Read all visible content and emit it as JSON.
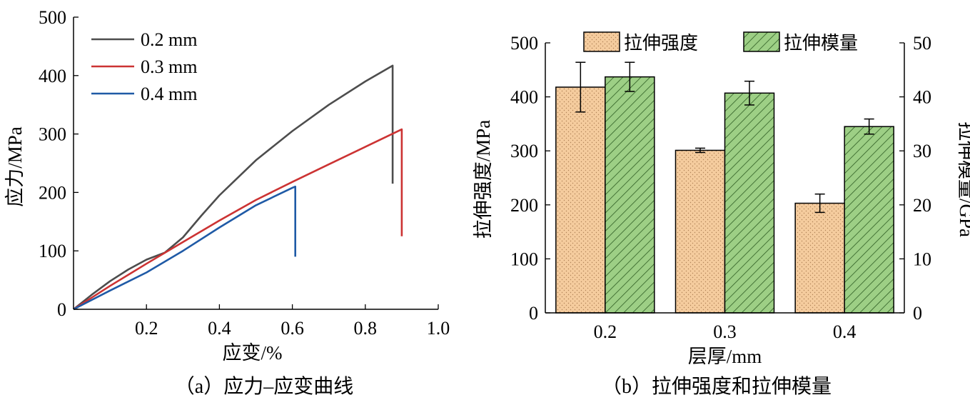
{
  "chart_data": [
    {
      "type": "line",
      "caption": "（a）应力–应变曲线",
      "xlabel": "应变/%",
      "ylabel": "应力/MPa",
      "xlim": [
        0,
        1.0
      ],
      "ylim": [
        0,
        500
      ],
      "xticks": [
        0.2,
        0.4,
        0.6,
        0.8,
        1.0
      ],
      "xtick_labels": [
        "0.2",
        "0.4",
        "0.6",
        "0.8",
        "1.0"
      ],
      "yticks": [
        0,
        100,
        200,
        300,
        400,
        500
      ],
      "ytick_labels": [
        "0",
        "100",
        "200",
        "300",
        "400",
        "500"
      ],
      "grid": false,
      "legend": "top-left",
      "series": [
        {
          "name": "0.2 mm",
          "color": "#4d4d4d",
          "x": [
            0,
            0.05,
            0.1,
            0.15,
            0.2,
            0.25,
            0.3,
            0.35,
            0.4,
            0.5,
            0.6,
            0.7,
            0.8,
            0.875,
            0.875
          ],
          "y": [
            0,
            25,
            48,
            68,
            85,
            97,
            123,
            160,
            195,
            255,
            305,
            350,
            390,
            417,
            215
          ]
        },
        {
          "name": "0.3 mm",
          "color": "#cc3333",
          "x": [
            0,
            0.1,
            0.2,
            0.3,
            0.4,
            0.5,
            0.6,
            0.7,
            0.8,
            0.9,
            0.9
          ],
          "y": [
            0,
            40,
            78,
            115,
            152,
            187,
            218,
            248,
            278,
            308,
            125
          ]
        },
        {
          "name": "0.4 mm",
          "color": "#1f5aa6",
          "x": [
            0,
            0.1,
            0.2,
            0.3,
            0.4,
            0.5,
            0.6,
            0.608,
            0.608
          ],
          "y": [
            0,
            32,
            63,
            100,
            140,
            178,
            208,
            210,
            90
          ]
        }
      ]
    },
    {
      "type": "bar",
      "caption": "（b）拉伸强度和拉伸模量",
      "xlabel": "层厚/mm",
      "ylabel": "拉伸强度/MPa",
      "y2label": "拉伸模量/GPa",
      "categories": [
        "0.2",
        "0.3",
        "0.4"
      ],
      "ylim": [
        0,
        500
      ],
      "y2lim": [
        0,
        50
      ],
      "yticks": [
        0,
        100,
        200,
        300,
        400,
        500
      ],
      "ytick_labels": [
        "0",
        "100",
        "200",
        "300",
        "400",
        "500"
      ],
      "y2ticks": [
        0,
        10,
        20,
        30,
        40,
        50
      ],
      "y2tick_labels": [
        "0",
        "10",
        "20",
        "30",
        "40",
        "50"
      ],
      "grid": false,
      "legend": "top",
      "series": [
        {
          "name": "拉伸强度",
          "axis": "left",
          "color": "#f5cc9e",
          "pattern": "dots",
          "values": [
            418,
            301,
            203
          ],
          "errors": [
            46,
            4,
            17
          ]
        },
        {
          "name": "拉伸模量",
          "axis": "right",
          "color": "#9dcf85",
          "pattern": "hatch",
          "values": [
            43.7,
            40.7,
            34.5
          ],
          "errors": [
            2.7,
            2.2,
            1.4
          ]
        }
      ]
    }
  ]
}
